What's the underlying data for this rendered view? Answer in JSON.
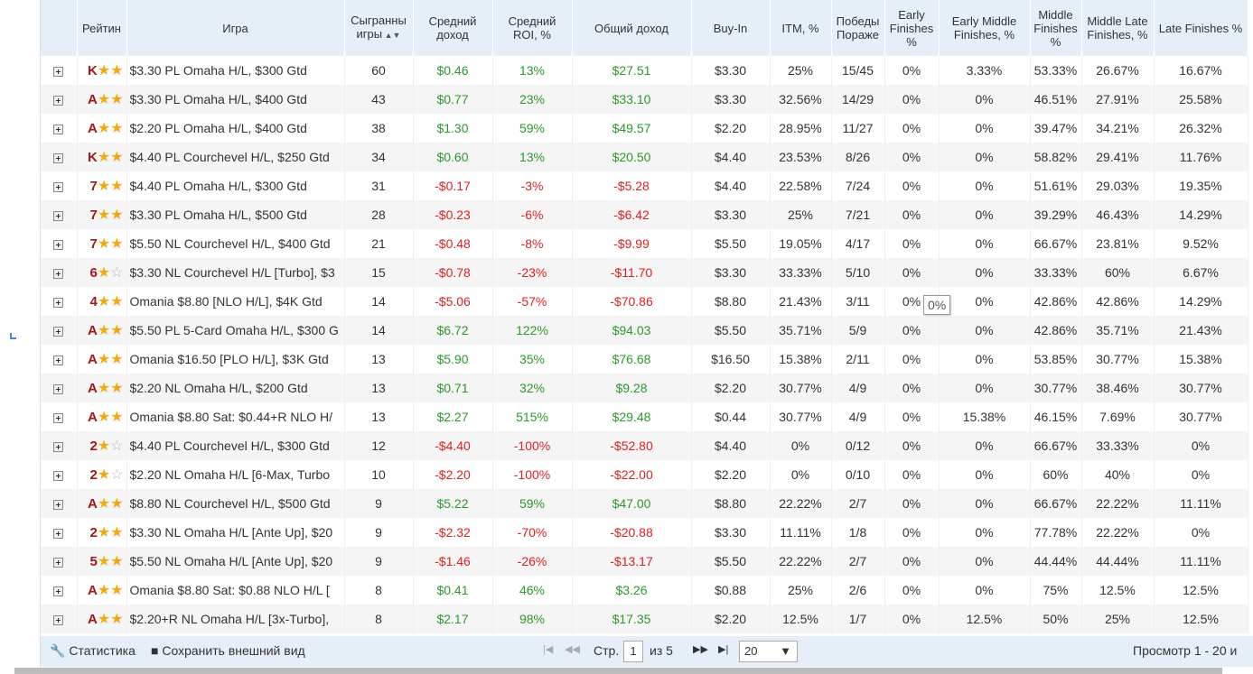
{
  "headers": [
    "",
    "Рейтин",
    "Игра",
    "Сыгранны игры",
    "Средний доход",
    "Средний ROI, %",
    "Общий доход",
    "Buy-In",
    "ITM, %",
    "Победы Пораже",
    "Early Finishes %",
    "Early Middle Finishes, %",
    "Middle Finishes %",
    "Middle Late Finishes, %",
    "Late Finishes %"
  ],
  "rows": [
    [
      "K",
      2,
      "$3.30 PL Omaha H/L, $300 Gtd",
      "60",
      "$0.46",
      "13%",
      "$27.51",
      "$3.30",
      "25%",
      "15/45",
      "0%",
      "3.33%",
      "53.33%",
      "26.67%",
      "16.67%"
    ],
    [
      "A",
      2,
      "$3.30 PL Omaha H/L, $400 Gtd",
      "43",
      "$0.77",
      "23%",
      "$33.10",
      "$3.30",
      "32.56%",
      "14/29",
      "0%",
      "0%",
      "46.51%",
      "27.91%",
      "25.58%"
    ],
    [
      "A",
      2,
      "$2.20 PL Omaha H/L, $400 Gtd",
      "38",
      "$1.30",
      "59%",
      "$49.57",
      "$2.20",
      "28.95%",
      "11/27",
      "0%",
      "0%",
      "39.47%",
      "34.21%",
      "26.32%"
    ],
    [
      "K",
      2,
      "$4.40 PL Courchevel H/L, $250 Gtd",
      "34",
      "$0.60",
      "13%",
      "$20.50",
      "$4.40",
      "23.53%",
      "8/26",
      "0%",
      "0%",
      "58.82%",
      "29.41%",
      "11.76%"
    ],
    [
      "7",
      2,
      "$4.40 PL Omaha H/L, $300 Gtd",
      "31",
      "-$0.17",
      "-3%",
      "-$5.28",
      "$4.40",
      "22.58%",
      "7/24",
      "0%",
      "0%",
      "51.61%",
      "29.03%",
      "19.35%"
    ],
    [
      "7",
      2,
      "$3.30 PL Omaha H/L, $500 Gtd",
      "28",
      "-$0.23",
      "-6%",
      "-$6.42",
      "$3.30",
      "25%",
      "7/21",
      "0%",
      "0%",
      "39.29%",
      "46.43%",
      "14.29%"
    ],
    [
      "7",
      2,
      "$5.50 NL Courchevel H/L, $400 Gtd",
      "21",
      "-$0.48",
      "-8%",
      "-$9.99",
      "$5.50",
      "19.05%",
      "4/17",
      "0%",
      "0%",
      "66.67%",
      "23.81%",
      "9.52%"
    ],
    [
      "6",
      1,
      "$3.30 NL Courchevel H/L [Turbo], $3",
      "15",
      "-$0.78",
      "-23%",
      "-$11.70",
      "$3.30",
      "33.33%",
      "5/10",
      "0%",
      "0%",
      "33.33%",
      "60%",
      "6.67%"
    ],
    [
      "4",
      2,
      "Omania $8.80 [NLO H/L], $4K Gtd",
      "14",
      "-$5.06",
      "-57%",
      "-$70.86",
      "$8.80",
      "21.43%",
      "3/11",
      "0%",
      "0%",
      "42.86%",
      "42.86%",
      "14.29%"
    ],
    [
      "A",
      2,
      "$5.50 PL 5-Card Omaha H/L, $300 G",
      "14",
      "$6.72",
      "122%",
      "$94.03",
      "$5.50",
      "35.71%",
      "5/9",
      "0%",
      "0%",
      "42.86%",
      "35.71%",
      "21.43%"
    ],
    [
      "A",
      2,
      "Omania $16.50 [PLO H/L], $3K Gtd",
      "13",
      "$5.90",
      "35%",
      "$76.68",
      "$16.50",
      "15.38%",
      "2/11",
      "0%",
      "0%",
      "53.85%",
      "30.77%",
      "15.38%"
    ],
    [
      "A",
      2,
      "$2.20 NL Omaha H/L, $200 Gtd",
      "13",
      "$0.71",
      "32%",
      "$9.28",
      "$2.20",
      "30.77%",
      "4/9",
      "0%",
      "0%",
      "30.77%",
      "38.46%",
      "30.77%"
    ],
    [
      "A",
      2,
      "Omania $8.80 Sat: $0.44+R NLO H/",
      "13",
      "$2.27",
      "515%",
      "$29.48",
      "$0.44",
      "30.77%",
      "4/9",
      "0%",
      "15.38%",
      "46.15%",
      "7.69%",
      "30.77%"
    ],
    [
      "2",
      1,
      "$4.40 PL Courchevel H/L, $300 Gtd",
      "12",
      "-$4.40",
      "-100%",
      "-$52.80",
      "$4.40",
      "0%",
      "0/12",
      "0%",
      "0%",
      "66.67%",
      "33.33%",
      "0%"
    ],
    [
      "2",
      1,
      "$2.20 NL Omaha H/L [6-Max, Turbo",
      "10",
      "-$2.20",
      "-100%",
      "-$22.00",
      "$2.20",
      "0%",
      "0/10",
      "0%",
      "0%",
      "60%",
      "40%",
      "0%"
    ],
    [
      "A",
      2,
      "$8.80 NL Courchevel H/L, $500 Gtd",
      "9",
      "$5.22",
      "59%",
      "$47.00",
      "$8.80",
      "22.22%",
      "2/7",
      "0%",
      "0%",
      "66.67%",
      "22.22%",
      "11.11%"
    ],
    [
      "2",
      2,
      "$3.30 NL Omaha H/L [Ante Up], $20",
      "9",
      "-$2.32",
      "-70%",
      "-$20.88",
      "$3.30",
      "11.11%",
      "1/8",
      "0%",
      "0%",
      "77.78%",
      "22.22%",
      "0%"
    ],
    [
      "5",
      2,
      "$5.50 NL Omaha H/L [Ante Up], $20",
      "9",
      "-$1.46",
      "-26%",
      "-$13.17",
      "$5.50",
      "22.22%",
      "2/7",
      "0%",
      "0%",
      "44.44%",
      "44.44%",
      "11.11%"
    ],
    [
      "A",
      2,
      "Omania $8.80 Sat: $0.88 NLO H/L [",
      "8",
      "$0.41",
      "46%",
      "$3.26",
      "$0.88",
      "25%",
      "2/6",
      "0%",
      "0%",
      "75%",
      "12.5%",
      "12.5%"
    ],
    [
      "A",
      2,
      "$2.20+R NL Omaha H/L [3x-Turbo],",
      "8",
      "$2.17",
      "98%",
      "$17.35",
      "$2.20",
      "12.5%",
      "1/7",
      "0%",
      "12.5%",
      "50%",
      "25%",
      "12.5%"
    ]
  ],
  "footer": {
    "stats": "Статистика",
    "save": "Сохранить внешний вид",
    "page_label": "Стр.",
    "page": "1",
    "of": "из 5",
    "per_page": "20",
    "view": "Просмотр 1 - 20 и"
  },
  "tooltip": "0%",
  "colors": {
    "positive": "#2a9a2a",
    "negative": "#e02020",
    "header": "#e6eef8"
  }
}
